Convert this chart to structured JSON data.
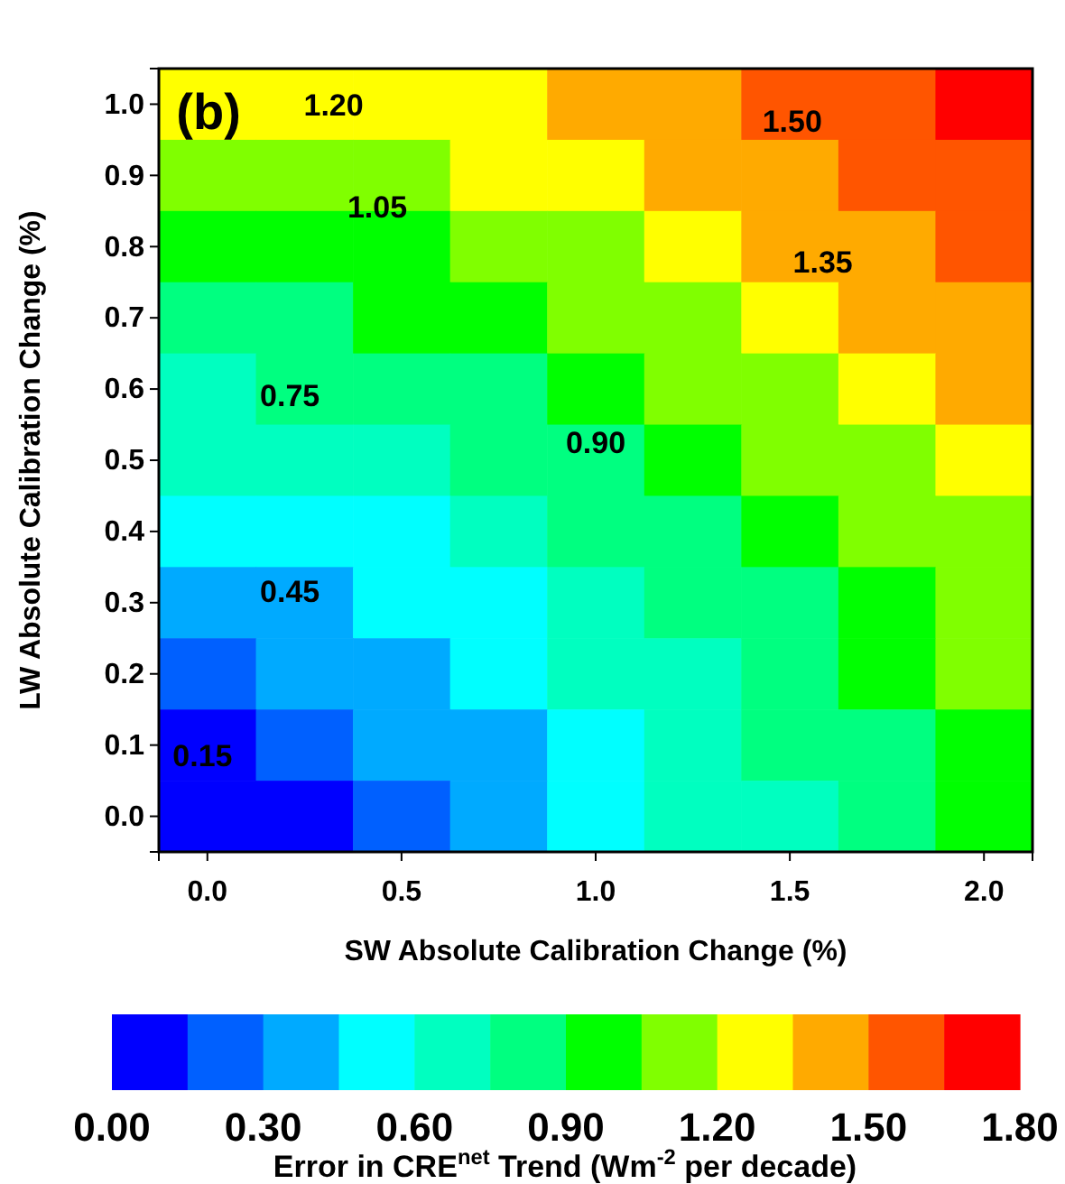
{
  "chart_data": {
    "type": "heatmap",
    "xlabel": "SW Absolute Calibration Change (%)",
    "ylabel": "LW Absolute Calibration Change (%)",
    "clabel": "Error in CRE$^{net}$ Trend (Wm$^{-2}$ per decade)",
    "categories": [
      "0.0",
      null,
      "0.5",
      null,
      "1.0",
      null,
      "1.5",
      null,
      "2.0"
    ],
    "y_categories": [
      "1.0",
      "0.9",
      "0.8",
      "0.7",
      "0.6",
      "0.5",
      "0.4",
      "0.3",
      "0.2",
      "0.1",
      "0.0"
    ],
    "clim": [
      0,
      1.8
    ],
    "cticks": [
      {
        "value": 0,
        "label": "0.00"
      },
      {
        "value": 0.3,
        "label": "0.30"
      },
      {
        "value": 0.6,
        "label": "0.60"
      },
      {
        "value": 0.9,
        "label": "0.90"
      },
      {
        "value": 1.2,
        "label": "1.20"
      },
      {
        "value": 1.5,
        "label": "1.50"
      },
      {
        "value": 1.8,
        "label": "1.80"
      }
    ],
    "cells": [
      [
        1.2,
        1.23,
        1.27,
        1.33,
        1.4,
        1.48,
        1.56,
        1.64,
        1.73
      ],
      [
        1.08,
        1.11,
        1.16,
        1.22,
        1.29,
        1.37,
        1.45,
        1.54,
        1.64
      ],
      [
        0.96,
        0.99,
        1.04,
        1.11,
        1.18,
        1.26,
        1.35,
        1.44,
        1.54
      ],
      [
        0.84,
        0.87,
        0.93,
        1.0,
        1.07,
        1.16,
        1.25,
        1.35,
        1.45
      ],
      [
        0.72,
        0.75,
        0.81,
        0.89,
        0.97,
        1.06,
        1.15,
        1.25,
        1.36
      ],
      [
        0.6,
        0.64,
        0.7,
        0.78,
        0.87,
        0.96,
        1.06,
        1.17,
        1.27
      ],
      [
        0.48,
        0.52,
        0.59,
        0.67,
        0.77,
        0.87,
        0.97,
        1.08,
        1.19
      ],
      [
        0.36,
        0.41,
        0.48,
        0.58,
        0.68,
        0.78,
        0.89,
        1.01,
        1.12
      ],
      [
        0.24,
        0.3,
        0.39,
        0.49,
        0.6,
        0.71,
        0.82,
        0.94,
        1.06
      ],
      [
        0.12,
        0.19,
        0.3,
        0.41,
        0.53,
        0.65,
        0.77,
        0.89,
        1.01
      ],
      [
        0.0,
        0.12,
        0.25,
        0.37,
        0.49,
        0.61,
        0.74,
        0.86,
        0.98
      ]
    ],
    "annotations": [
      "(b)",
      "1.20",
      "1.50",
      "1.05",
      "1.35",
      "0.75",
      "0.90",
      "0.45",
      "0.15"
    ]
  }
}
